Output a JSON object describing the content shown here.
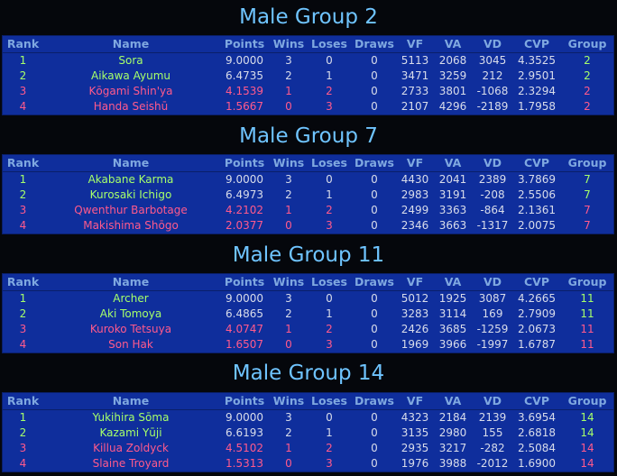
{
  "headers": [
    "Rank",
    "Name",
    "Points",
    "Wins",
    "Loses",
    "Draws",
    "VF",
    "VA",
    "VD",
    "CVP",
    "Group"
  ],
  "groups": [
    {
      "title": "Male Group 2",
      "rows": [
        {
          "rank": "1",
          "name": "Sora",
          "points": "9.0000",
          "wins": "3",
          "loses": "0",
          "draws": "0",
          "vf": "5113",
          "va": "2068",
          "vd": "3045",
          "cvp": "4.3525",
          "group": "2"
        },
        {
          "rank": "2",
          "name": "Aikawa Ayumu",
          "points": "6.4735",
          "wins": "2",
          "loses": "1",
          "draws": "0",
          "vf": "3471",
          "va": "3259",
          "vd": "212",
          "cvp": "2.9501",
          "group": "2"
        },
        {
          "rank": "3",
          "name": "Kōgami Shin'ya",
          "points": "4.1539",
          "wins": "1",
          "loses": "2",
          "draws": "0",
          "vf": "2733",
          "va": "3801",
          "vd": "-1068",
          "cvp": "2.3294",
          "group": "2"
        },
        {
          "rank": "4",
          "name": "Handa Seishū",
          "points": "1.5667",
          "wins": "0",
          "loses": "3",
          "draws": "0",
          "vf": "2107",
          "va": "4296",
          "vd": "-2189",
          "cvp": "1.7958",
          "group": "2"
        }
      ]
    },
    {
      "title": "Male Group 7",
      "rows": [
        {
          "rank": "1",
          "name": "Akabane Karma",
          "points": "9.0000",
          "wins": "3",
          "loses": "0",
          "draws": "0",
          "vf": "4430",
          "va": "2041",
          "vd": "2389",
          "cvp": "3.7869",
          "group": "7"
        },
        {
          "rank": "2",
          "name": "Kurosaki Ichigo",
          "points": "6.4973",
          "wins": "2",
          "loses": "1",
          "draws": "0",
          "vf": "2983",
          "va": "3191",
          "vd": "-208",
          "cvp": "2.5506",
          "group": "7"
        },
        {
          "rank": "3",
          "name": "Qwenthur Barbotage",
          "points": "4.2102",
          "wins": "1",
          "loses": "2",
          "draws": "0",
          "vf": "2499",
          "va": "3363",
          "vd": "-864",
          "cvp": "2.1361",
          "group": "7"
        },
        {
          "rank": "4",
          "name": "Makishima Shōgo",
          "points": "2.0377",
          "wins": "0",
          "loses": "3",
          "draws": "0",
          "vf": "2346",
          "va": "3663",
          "vd": "-1317",
          "cvp": "2.0075",
          "group": "7"
        }
      ]
    },
    {
      "title": "Male Group 11",
      "rows": [
        {
          "rank": "1",
          "name": "Archer",
          "points": "9.0000",
          "wins": "3",
          "loses": "0",
          "draws": "0",
          "vf": "5012",
          "va": "1925",
          "vd": "3087",
          "cvp": "4.2665",
          "group": "11"
        },
        {
          "rank": "2",
          "name": "Aki Tomoya",
          "points": "6.4865",
          "wins": "2",
          "loses": "1",
          "draws": "0",
          "vf": "3283",
          "va": "3114",
          "vd": "169",
          "cvp": "2.7909",
          "group": "11"
        },
        {
          "rank": "3",
          "name": "Kuroko Tetsuya",
          "points": "4.0747",
          "wins": "1",
          "loses": "2",
          "draws": "0",
          "vf": "2426",
          "va": "3685",
          "vd": "-1259",
          "cvp": "2.0673",
          "group": "11"
        },
        {
          "rank": "4",
          "name": "Son Hak",
          "points": "1.6507",
          "wins": "0",
          "loses": "3",
          "draws": "0",
          "vf": "1969",
          "va": "3966",
          "vd": "-1997",
          "cvp": "1.6787",
          "group": "11"
        }
      ]
    },
    {
      "title": "Male Group 14",
      "rows": [
        {
          "rank": "1",
          "name": "Yukihira Sōma",
          "points": "9.0000",
          "wins": "3",
          "loses": "0",
          "draws": "0",
          "vf": "4323",
          "va": "2184",
          "vd": "2139",
          "cvp": "3.6954",
          "group": "14"
        },
        {
          "rank": "2",
          "name": "Kazami Yūji",
          "points": "6.6193",
          "wins": "2",
          "loses": "1",
          "draws": "0",
          "vf": "3135",
          "va": "2980",
          "vd": "155",
          "cvp": "2.6818",
          "group": "14"
        },
        {
          "rank": "3",
          "name": "Killua Zoldyck",
          "points": "4.5102",
          "wins": "1",
          "loses": "2",
          "draws": "0",
          "vf": "2935",
          "va": "3217",
          "vd": "-282",
          "cvp": "2.5084",
          "group": "14"
        },
        {
          "rank": "4",
          "name": "Slaine Troyard",
          "points": "1.5313",
          "wins": "0",
          "loses": "3",
          "draws": "0",
          "vf": "1976",
          "va": "3988",
          "vd": "-2012",
          "cvp": "1.6900",
          "group": "14"
        }
      ]
    }
  ]
}
